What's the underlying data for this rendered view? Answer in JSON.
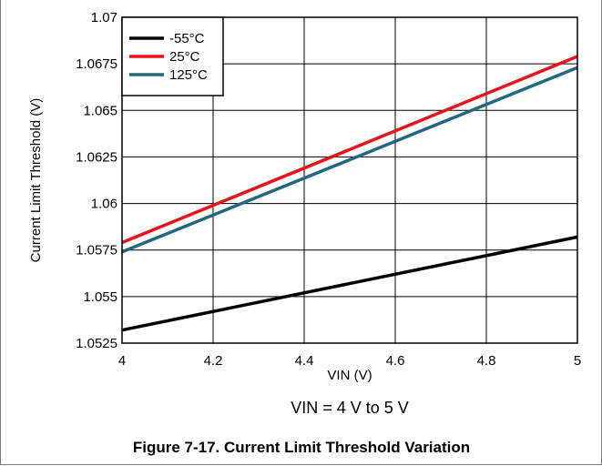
{
  "chart_data": {
    "type": "line",
    "xlabel": "VIN (V)",
    "ylabel": "Current Limit Threshold (V)",
    "xlim": [
      4,
      5
    ],
    "ylim": [
      1.0525,
      1.07
    ],
    "x_ticks": [
      "4",
      "4.2",
      "4.4",
      "4.6",
      "4.8",
      "5"
    ],
    "y_ticks": [
      "1.0525",
      "1.055",
      "1.0575",
      "1.06",
      "1.0625",
      "1.065",
      "1.0675",
      "1.07"
    ],
    "grid": true,
    "legend_position": "top-left",
    "x": [
      4,
      5
    ],
    "series": [
      {
        "name": "-55°C",
        "color": "#000000",
        "values": [
          1.0532,
          1.0582
        ]
      },
      {
        "name": "25°C",
        "color": "#e8131b",
        "values": [
          1.0579,
          1.0679
        ]
      },
      {
        "name": "125°C",
        "color": "#1f6880",
        "values": [
          1.0574,
          1.0673
        ]
      }
    ],
    "annotation": "VIN = 4 V to 5 V"
  },
  "caption": "Figure 7-17. Current Limit Threshold Variation"
}
